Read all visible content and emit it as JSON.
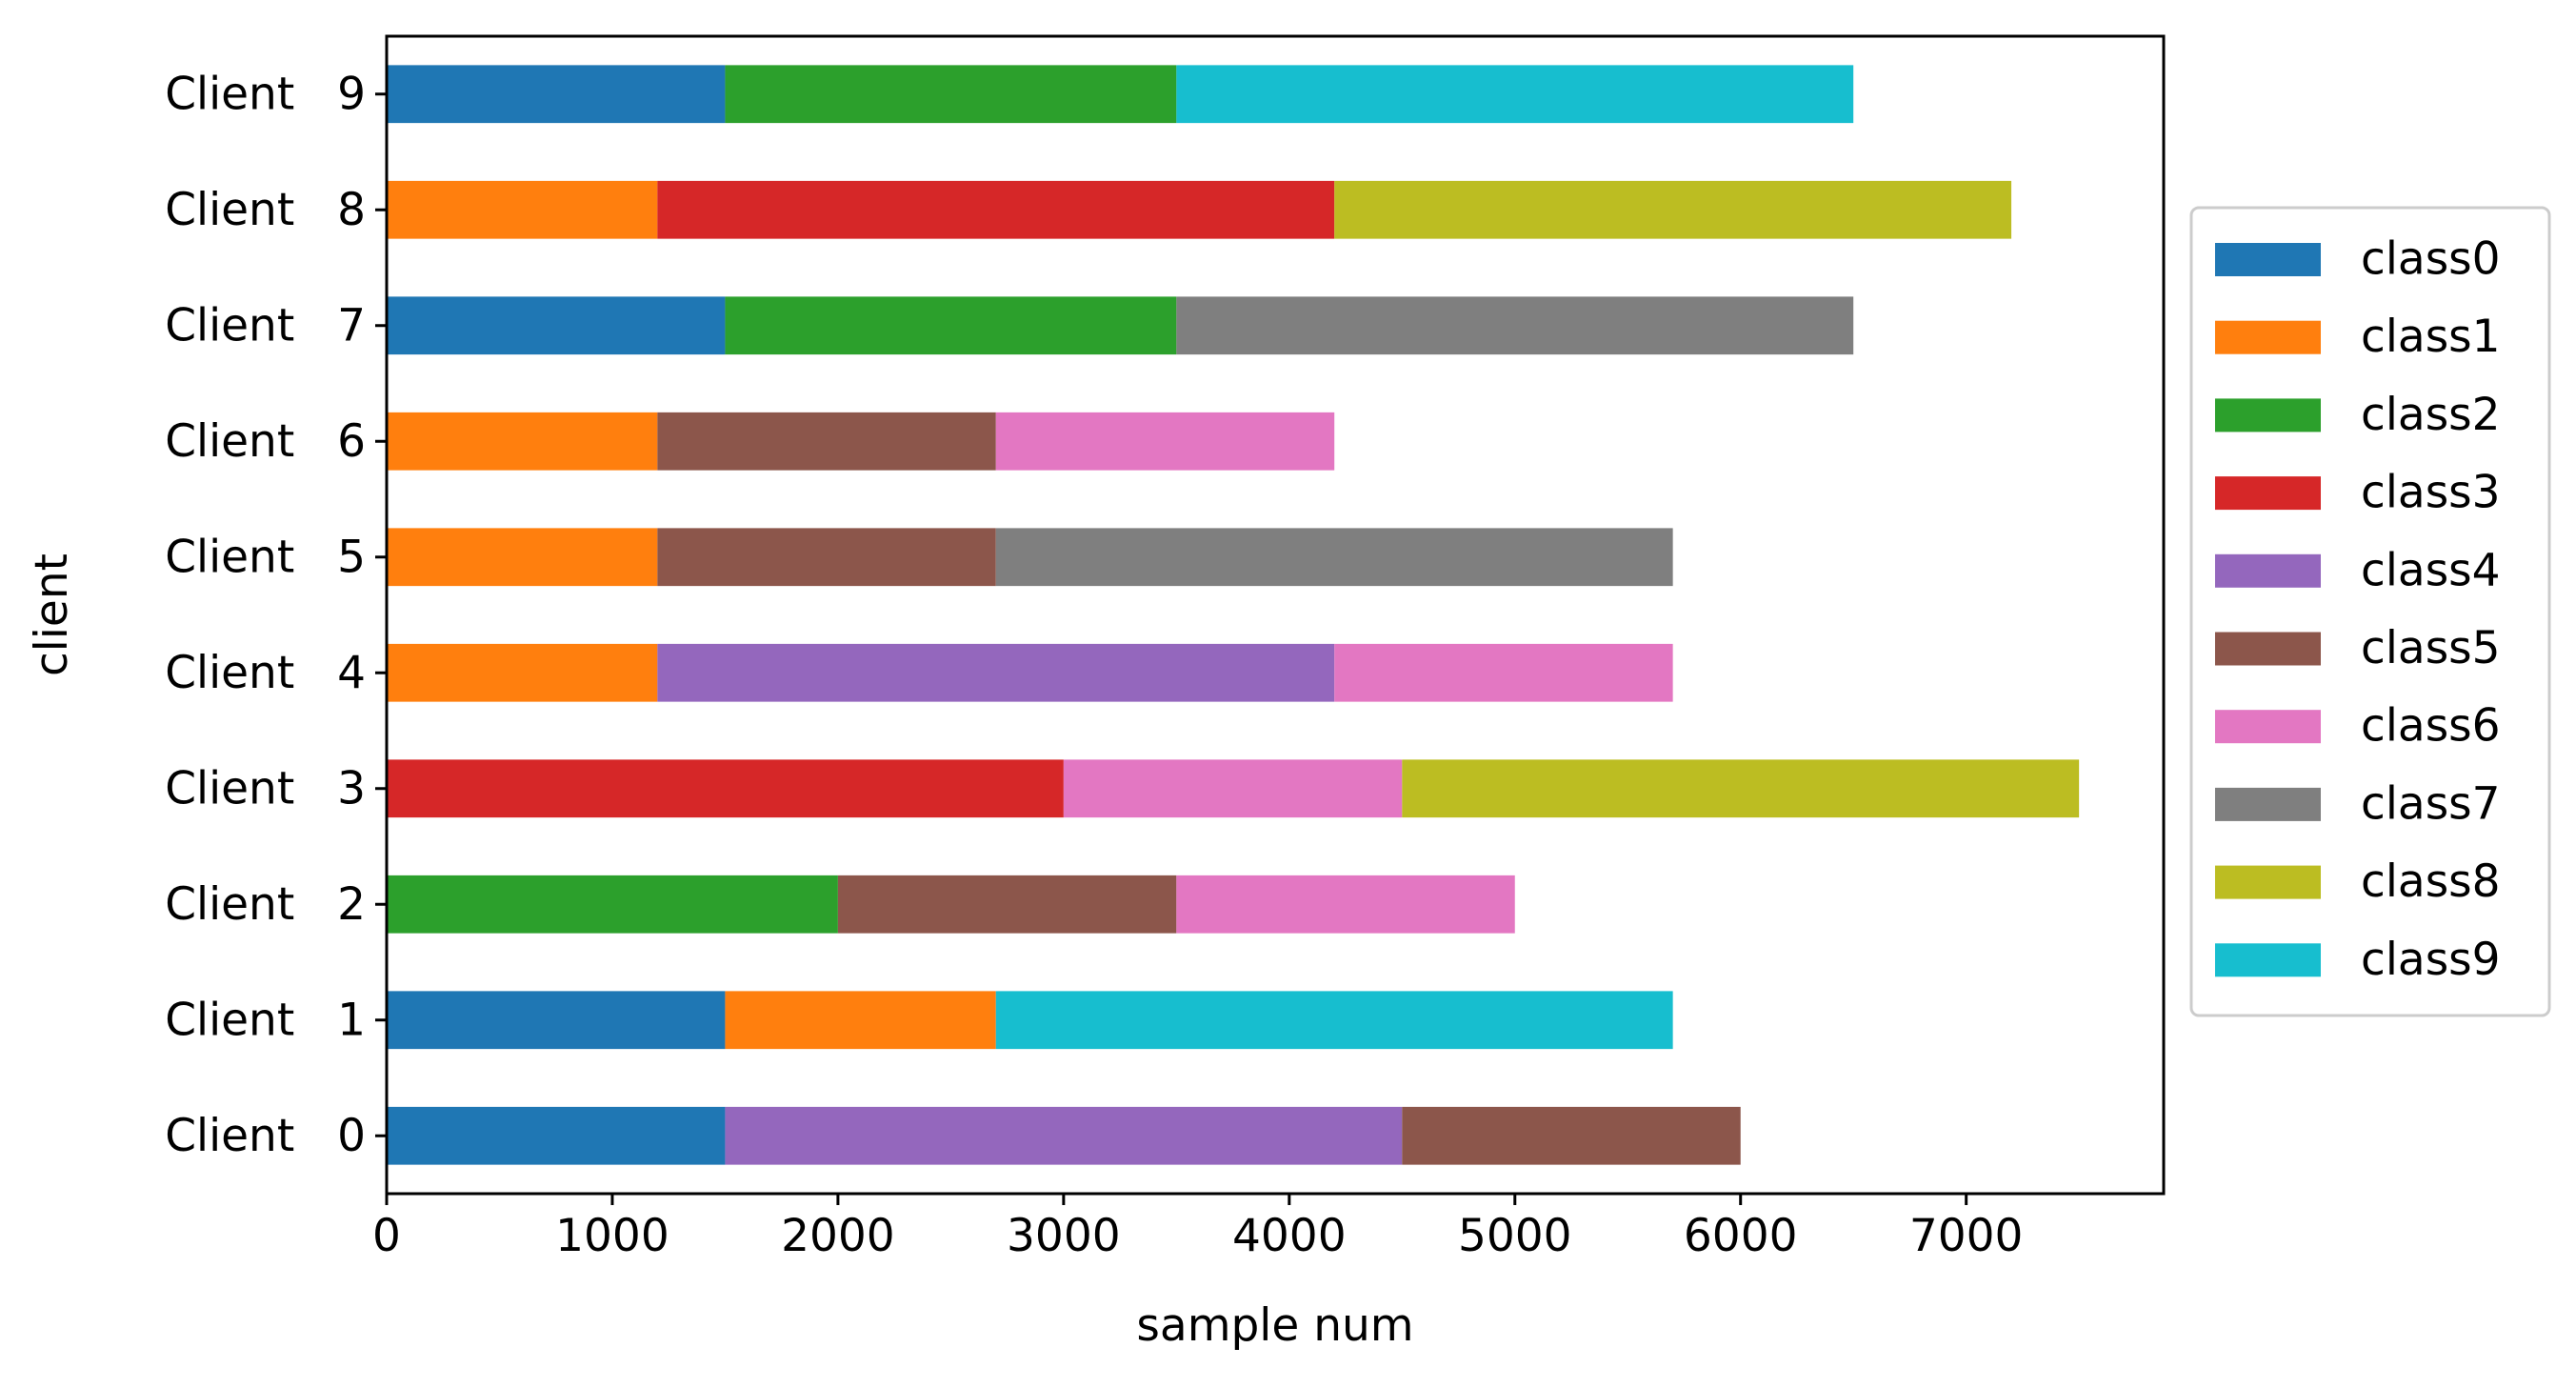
{
  "chart_data": {
    "type": "bar",
    "orientation": "horizontal",
    "stacked": true,
    "categories": [
      "Client   0",
      "Client   1",
      "Client   2",
      "Client   3",
      "Client   4",
      "Client   5",
      "Client   6",
      "Client   7",
      "Client   8",
      "Client   9"
    ],
    "series": [
      {
        "name": "class0",
        "color": "#1f77b4",
        "values": [
          1500,
          1500,
          0,
          0,
          0,
          0,
          0,
          1500,
          0,
          1500
        ]
      },
      {
        "name": "class1",
        "color": "#ff7f0e",
        "values": [
          0,
          1200,
          0,
          0,
          1200,
          1200,
          1200,
          0,
          1200,
          0
        ]
      },
      {
        "name": "class2",
        "color": "#2ca02c",
        "values": [
          0,
          0,
          2000,
          0,
          0,
          0,
          0,
          2000,
          0,
          2000
        ]
      },
      {
        "name": "class3",
        "color": "#d62728",
        "values": [
          0,
          0,
          0,
          3000,
          0,
          0,
          0,
          0,
          3000,
          0
        ]
      },
      {
        "name": "class4",
        "color": "#9467bd",
        "values": [
          3000,
          0,
          0,
          0,
          3000,
          0,
          0,
          0,
          0,
          0
        ]
      },
      {
        "name": "class5",
        "color": "#8c564b",
        "values": [
          1500,
          0,
          1500,
          0,
          0,
          1500,
          1500,
          0,
          0,
          0
        ]
      },
      {
        "name": "class6",
        "color": "#e377c2",
        "values": [
          0,
          0,
          1500,
          1500,
          1500,
          0,
          1500,
          0,
          0,
          0
        ]
      },
      {
        "name": "class7",
        "color": "#7f7f7f",
        "values": [
          0,
          0,
          0,
          0,
          0,
          3000,
          0,
          3000,
          0,
          0
        ]
      },
      {
        "name": "class8",
        "color": "#bcbd22",
        "values": [
          0,
          0,
          0,
          3000,
          0,
          0,
          0,
          0,
          3000,
          0
        ]
      },
      {
        "name": "class9",
        "color": "#17becf",
        "values": [
          0,
          3000,
          0,
          0,
          0,
          0,
          0,
          0,
          0,
          3000
        ]
      }
    ],
    "xlabel": "sample num",
    "ylabel": "client",
    "xlim": [
      0,
      7875
    ],
    "xticks": [
      0,
      1000,
      2000,
      3000,
      4000,
      5000,
      6000,
      7000
    ],
    "grid": false,
    "legend_position": "center-right, outside"
  }
}
